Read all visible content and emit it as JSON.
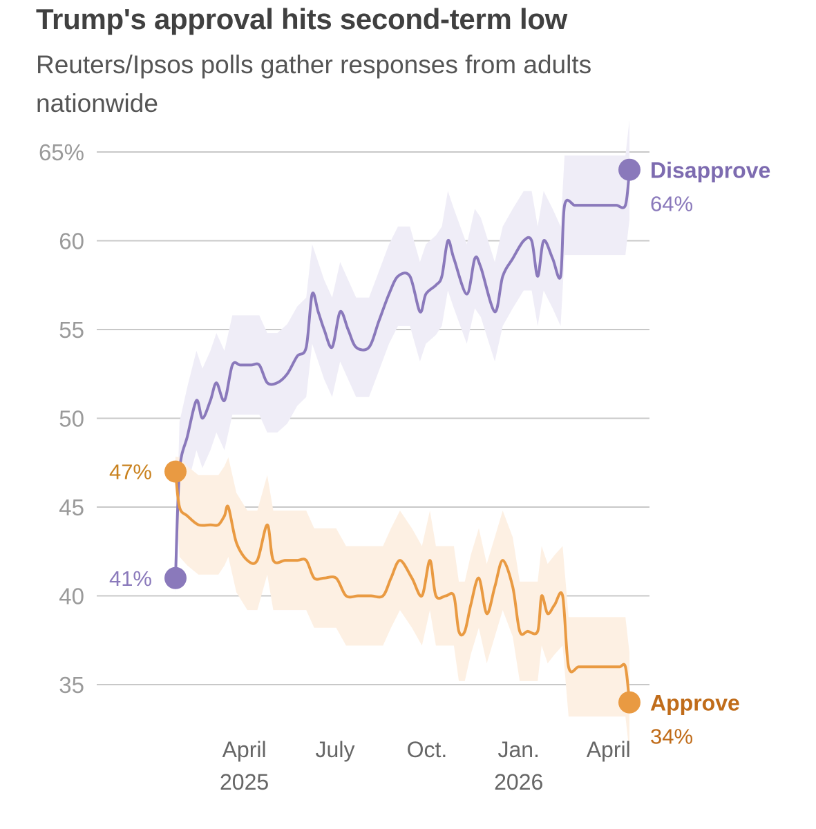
{
  "title": "Trump's approval hits second-term low",
  "subtitle": "Reuters/Ipsos polls gather responses from adults nationwide",
  "colors": {
    "disapprove": "#8a79bb",
    "disapprove_label": "#7d6bb0",
    "disapprove_band": "#efedf7",
    "approve": "#e99a42",
    "approve_label": "#c06c1a",
    "approve_start_label": "#c9821f",
    "approve_band": "#fdf0e3",
    "grid": "#c8c8c8",
    "tick": "#9a9a9a"
  },
  "chart_data": {
    "type": "line",
    "title": "Trump's approval hits second-term low",
    "subtitle": "Reuters/Ipsos polls gather responses from adults nationwide",
    "x_axis": {
      "type": "date",
      "range": [
        "2025-01-22",
        "2026-04-25"
      ],
      "ticks": [
        {
          "date": "2025-04-01",
          "label": "April",
          "sublabel": "2025"
        },
        {
          "date": "2025-07-01",
          "label": "July",
          "sublabel": ""
        },
        {
          "date": "2025-10-01",
          "label": "Oct.",
          "sublabel": ""
        },
        {
          "date": "2026-01-01",
          "label": "Jan.",
          "sublabel": "2026"
        },
        {
          "date": "2026-04-01",
          "label": "April",
          "sublabel": ""
        }
      ]
    },
    "y_axis": {
      "ylim": [
        33,
        65
      ],
      "ticks": [
        {
          "value": 35,
          "label": "35"
        },
        {
          "value": 40,
          "label": "40"
        },
        {
          "value": 45,
          "label": "45"
        },
        {
          "value": 50,
          "label": "50"
        },
        {
          "value": 55,
          "label": "55"
        },
        {
          "value": 60,
          "label": "60"
        },
        {
          "value": 65,
          "label": "65%"
        }
      ],
      "grid": true
    },
    "series": [
      {
        "name": "Disapprove",
        "start_label": "41%",
        "end_label": "64%",
        "points": [
          [
            "2025-01-22",
            41
          ],
          [
            "2025-01-26",
            47
          ],
          [
            "2025-02-03",
            49
          ],
          [
            "2025-02-12",
            51
          ],
          [
            "2025-02-18",
            50
          ],
          [
            "2025-02-26",
            51
          ],
          [
            "2025-03-04",
            52
          ],
          [
            "2025-03-12",
            51
          ],
          [
            "2025-03-20",
            53
          ],
          [
            "2025-03-28",
            53
          ],
          [
            "2025-04-08",
            53
          ],
          [
            "2025-04-16",
            53
          ],
          [
            "2025-04-24",
            52
          ],
          [
            "2025-05-04",
            52
          ],
          [
            "2025-05-14",
            52.5
          ],
          [
            "2025-05-24",
            53.5
          ],
          [
            "2025-06-02",
            54
          ],
          [
            "2025-06-08",
            57
          ],
          [
            "2025-06-14",
            56
          ],
          [
            "2025-06-20",
            55
          ],
          [
            "2025-06-28",
            54
          ],
          [
            "2025-07-06",
            56
          ],
          [
            "2025-07-14",
            55
          ],
          [
            "2025-07-22",
            54
          ],
          [
            "2025-08-04",
            54
          ],
          [
            "2025-08-14",
            55.5
          ],
          [
            "2025-08-24",
            57
          ],
          [
            "2025-09-02",
            58
          ],
          [
            "2025-09-14",
            58
          ],
          [
            "2025-09-24",
            56
          ],
          [
            "2025-09-30",
            57
          ],
          [
            "2025-10-10",
            57.5
          ],
          [
            "2025-10-16",
            58
          ],
          [
            "2025-10-22",
            60
          ],
          [
            "2025-10-28",
            59
          ],
          [
            "2025-11-10",
            57
          ],
          [
            "2025-11-18",
            59
          ],
          [
            "2025-11-24",
            58.5
          ],
          [
            "2025-12-08",
            56
          ],
          [
            "2025-12-16",
            58
          ],
          [
            "2025-12-26",
            59
          ],
          [
            "2026-01-06",
            60
          ],
          [
            "2026-01-14",
            60
          ],
          [
            "2026-01-20",
            58
          ],
          [
            "2026-01-26",
            60
          ],
          [
            "2026-02-04",
            59
          ],
          [
            "2026-02-12",
            58
          ],
          [
            "2026-02-16",
            62
          ],
          [
            "2026-02-26",
            62
          ],
          [
            "2026-03-06",
            62
          ],
          [
            "2026-03-14",
            62
          ],
          [
            "2026-03-24",
            62
          ],
          [
            "2026-04-01",
            62
          ],
          [
            "2026-04-09",
            62
          ],
          [
            "2026-04-18",
            62
          ],
          [
            "2026-04-22",
            64
          ]
        ]
      },
      {
        "name": "Approve",
        "start_label": "47%",
        "end_label": "34%",
        "points": [
          [
            "2025-01-22",
            47
          ],
          [
            "2025-01-26",
            45
          ],
          [
            "2025-02-03",
            44.5
          ],
          [
            "2025-02-14",
            44
          ],
          [
            "2025-02-26",
            44
          ],
          [
            "2025-03-06",
            44
          ],
          [
            "2025-03-12",
            44.5
          ],
          [
            "2025-03-16",
            45
          ],
          [
            "2025-03-24",
            43
          ],
          [
            "2025-04-04",
            42
          ],
          [
            "2025-04-14",
            42
          ],
          [
            "2025-04-24",
            44
          ],
          [
            "2025-04-30",
            42
          ],
          [
            "2025-05-12",
            42
          ],
          [
            "2025-05-24",
            42
          ],
          [
            "2025-06-02",
            42
          ],
          [
            "2025-06-10",
            41
          ],
          [
            "2025-06-20",
            41
          ],
          [
            "2025-07-02",
            41
          ],
          [
            "2025-07-12",
            40
          ],
          [
            "2025-07-24",
            40
          ],
          [
            "2025-08-06",
            40
          ],
          [
            "2025-08-18",
            40
          ],
          [
            "2025-08-26",
            41
          ],
          [
            "2025-09-04",
            42
          ],
          [
            "2025-09-16",
            41
          ],
          [
            "2025-09-26",
            40
          ],
          [
            "2025-10-04",
            42
          ],
          [
            "2025-10-10",
            40
          ],
          [
            "2025-10-20",
            40
          ],
          [
            "2025-10-28",
            40
          ],
          [
            "2025-11-02",
            38
          ],
          [
            "2025-11-08",
            38
          ],
          [
            "2025-11-14",
            39.5
          ],
          [
            "2025-11-22",
            41
          ],
          [
            "2025-11-30",
            39
          ],
          [
            "2025-12-08",
            40.5
          ],
          [
            "2025-12-16",
            42
          ],
          [
            "2025-12-26",
            40.5
          ],
          [
            "2026-01-02",
            38
          ],
          [
            "2026-01-10",
            38
          ],
          [
            "2026-01-20",
            38
          ],
          [
            "2026-01-24",
            40
          ],
          [
            "2026-01-30",
            39
          ],
          [
            "2026-02-06",
            39.5
          ],
          [
            "2026-02-14",
            40
          ],
          [
            "2026-02-20",
            36
          ],
          [
            "2026-03-02",
            36
          ],
          [
            "2026-03-12",
            36
          ],
          [
            "2026-03-22",
            36
          ],
          [
            "2026-04-02",
            36
          ],
          [
            "2026-04-12",
            36
          ],
          [
            "2026-04-18",
            36
          ],
          [
            "2026-04-22",
            34
          ]
        ]
      }
    ]
  }
}
